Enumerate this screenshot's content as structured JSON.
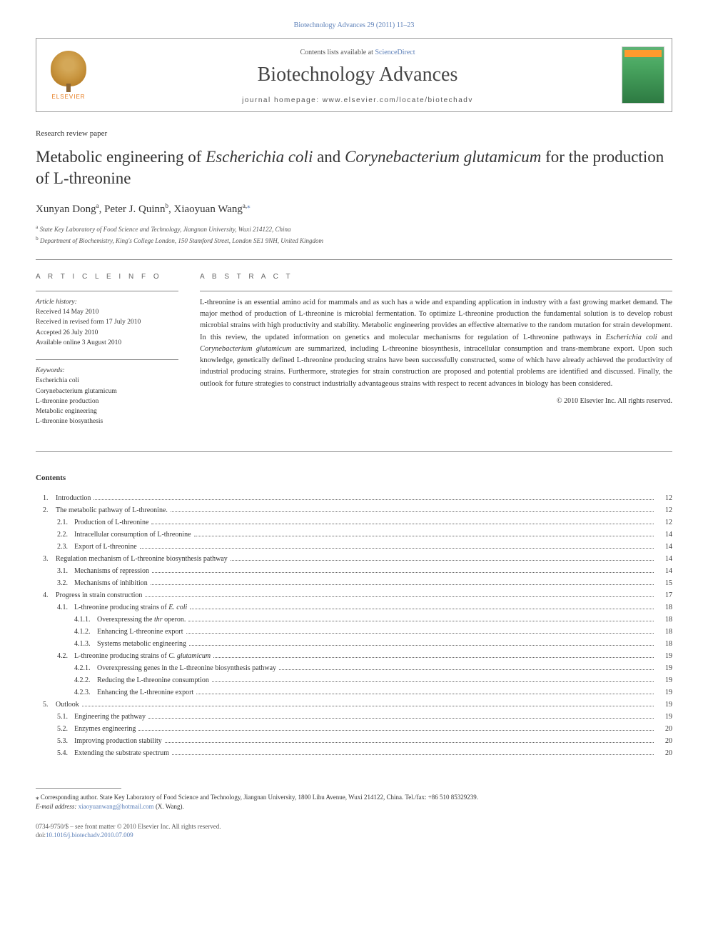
{
  "citation": "Biotechnology Advances 29 (2011) 11–23",
  "header": {
    "contents_prefix": "Contents lists available at ",
    "contents_link": "ScienceDirect",
    "journal": "Biotechnology Advances",
    "homepage_prefix": "journal homepage: ",
    "homepage": "www.elsevier.com/locate/biotechadv",
    "publisher": "ELSEVIER",
    "cover_label": "BIOTECHNOLOGY"
  },
  "article_type": "Research review paper",
  "title_parts": {
    "p1": "Metabolic engineering of ",
    "sp1": "Escherichia coli",
    "p2": " and ",
    "sp2": "Corynebacterium glutamicum",
    "p3": " for the production of ",
    "p4": "L",
    "p5": "-threonine"
  },
  "authors": {
    "a1": "Xunyan Dong",
    "a1_aff": "a",
    "a2": "Peter J. Quinn",
    "a2_aff": "b",
    "a3": "Xiaoyuan Wang",
    "a3_aff": "a,",
    "corr": "⁎"
  },
  "affiliations": {
    "a": "State Key Laboratory of Food Science and Technology, Jiangnan University, Wuxi 214122, China",
    "b": "Department of Biochemistry, King's College London, 150 Stamford Street, London SE1 9NH, United Kingdom"
  },
  "info": {
    "heading": "A R T I C L E   I N F O",
    "history_label": "Article history:",
    "received": "Received 14 May 2010",
    "revised": "Received in revised form 17 July 2010",
    "accepted": "Accepted 26 July 2010",
    "online": "Available online 3 August 2010",
    "keywords_label": "Keywords:",
    "keywords": [
      "Escherichia coli",
      "Corynebacterium glutamicum",
      "L-threonine production",
      "Metabolic engineering",
      "L-threonine biosynthesis"
    ]
  },
  "abstract": {
    "heading": "A B S T R A C T",
    "p1a": "L",
    "p1b": "-threonine is an essential amino acid for mammals and as such has a wide and expanding application in industry with a fast growing market demand. The major method of production of ",
    "p1c": "L",
    "p1d": "-threonine is microbial fermentation. To optimize ",
    "p1e": "L",
    "p1f": "-threonine production the fundamental solution is to develop robust microbial strains with high productivity and stability. Metabolic engineering provides an effective alternative to the random mutation for strain development. In this review, the updated information on genetics and molecular mechanisms for regulation of ",
    "p1g": "L",
    "p1h": "-threonine pathways in ",
    "sp1": "Escherichia coli",
    "p1i": " and ",
    "sp2": "Corynebacterium glutamicum",
    "p1j": " are summarized, including ",
    "p1k": "L",
    "p1l": "-threonine biosynthesis, intracellular consumption and trans-membrane export. Upon such knowledge, genetically defined ",
    "p1m": "L",
    "p1n": "-threonine producing strains have been successfully constructed, some of which have already achieved the productivity of industrial producing strains. Furthermore, strategies for strain construction are proposed and potential problems are identified and discussed. Finally, the outlook for future strategies to construct industrially advantageous strains with respect to recent advances in biology has been considered.",
    "copyright": "© 2010 Elsevier Inc. All rights reserved."
  },
  "contents_heading": "Contents",
  "toc": [
    {
      "l": 1,
      "n": "1.",
      "t": "Introduction",
      "it": "",
      "p": "12"
    },
    {
      "l": 1,
      "n": "2.",
      "t": "The metabolic pathway of ",
      "sc": "L",
      "t2": "-threonine.",
      "p": "12"
    },
    {
      "l": 2,
      "n": "2.1.",
      "t": "Production of L-threonine",
      "p": "12"
    },
    {
      "l": 2,
      "n": "2.2.",
      "t": "Intracellular consumption of L-threonine",
      "p": "14"
    },
    {
      "l": 2,
      "n": "2.3.",
      "t": "Export of L-threonine",
      "p": "14"
    },
    {
      "l": 1,
      "n": "3.",
      "t": "Regulation mechanism of L-threonine biosynthesis pathway",
      "p": "14"
    },
    {
      "l": 2,
      "n": "3.1.",
      "t": "Mechanisms of repression",
      "p": "14"
    },
    {
      "l": 2,
      "n": "3.2.",
      "t": "Mechanisms of inhibition",
      "p": "15"
    },
    {
      "l": 1,
      "n": "4.",
      "t": "Progress in strain construction",
      "p": "17"
    },
    {
      "l": 2,
      "n": "4.1.",
      "t": "L-threonine producing strains of ",
      "it": "E. coli",
      "p": "18"
    },
    {
      "l": 3,
      "n": "4.1.1.",
      "t": "Overexpressing the ",
      "it": "thr",
      "t2": " operon.",
      "p": "18"
    },
    {
      "l": 3,
      "n": "4.1.2.",
      "t": "Enhancing L-threonine export",
      "p": "18"
    },
    {
      "l": 3,
      "n": "4.1.3.",
      "t": "Systems metabolic engineering",
      "p": "18"
    },
    {
      "l": 2,
      "n": "4.2.",
      "t": "L-threonine producing strains of ",
      "it": "C. glutamicum",
      "p": "19"
    },
    {
      "l": 3,
      "n": "4.2.1.",
      "t": "Overexpressing genes in the L-threonine biosynthesis pathway",
      "p": "19"
    },
    {
      "l": 3,
      "n": "4.2.2.",
      "t": "Reducing the L-threonine consumption",
      "p": "19"
    },
    {
      "l": 3,
      "n": "4.2.3.",
      "t": "Enhancing the L-threonine export",
      "p": "19"
    },
    {
      "l": 1,
      "n": "5.",
      "t": "Outlook",
      "p": "19"
    },
    {
      "l": 2,
      "n": "5.1.",
      "t": "Engineering the pathway",
      "p": "19"
    },
    {
      "l": 2,
      "n": "5.2.",
      "t": "Enzymes engineering",
      "p": "20"
    },
    {
      "l": 2,
      "n": "5.3.",
      "t": "Improving production stability",
      "p": "20"
    },
    {
      "l": 2,
      "n": "5.4.",
      "t": "Extending the substrate spectrum",
      "p": "20"
    }
  ],
  "footnotes": {
    "corr_marker": "⁎",
    "corr_text": " Corresponding author. State Key Laboratory of Food Science and Technology, Jiangnan University, 1800 Lihu Avenue, Wuxi 214122, China. Tel./fax: +86 510 85329239.",
    "email_label": "E-mail address:",
    "email": "xiaoyuanwang@hotmail.com",
    "email_who": " (X. Wang)."
  },
  "bottom": {
    "issn": "0734-9750/$ – see front matter © 2010 Elsevier Inc. All rights reserved.",
    "doi_label": "doi:",
    "doi": "10.1016/j.biotechadv.2010.07.009"
  },
  "colors": {
    "link": "#5b7fb8",
    "text": "#333333",
    "border": "#888888"
  }
}
